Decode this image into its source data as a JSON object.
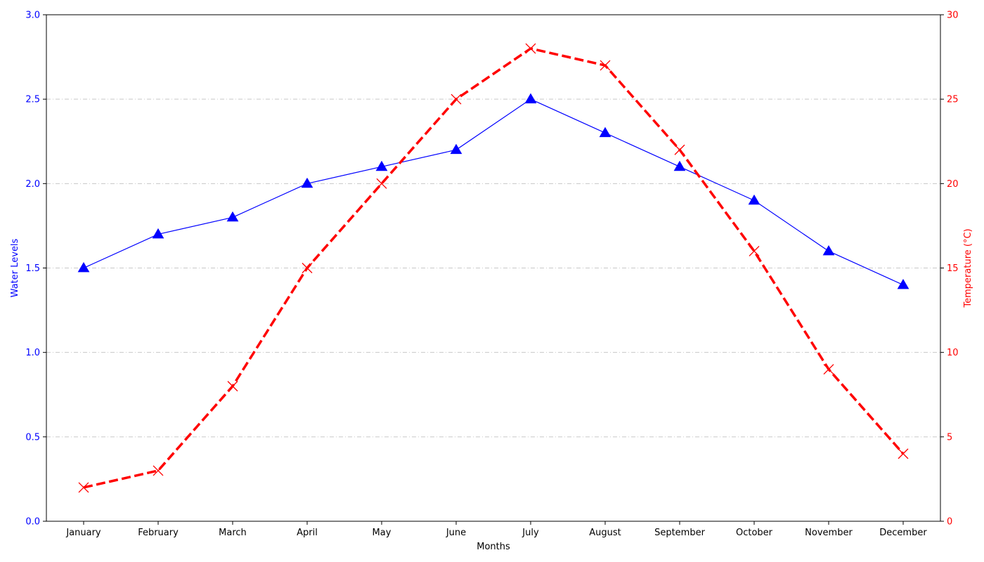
{
  "chart_data": {
    "type": "line",
    "title": "",
    "xlabel": "Months",
    "categories": [
      "January",
      "February",
      "March",
      "April",
      "May",
      "June",
      "July",
      "August",
      "September",
      "October",
      "November",
      "December"
    ],
    "left_axis": {
      "label": "Water Levels",
      "ylim": [
        0,
        3.0
      ],
      "ticks": [
        "0.0",
        "0.5",
        "1.0",
        "1.5",
        "2.0",
        "2.5",
        "3.0"
      ],
      "tick_values": [
        0,
        0.5,
        1.0,
        1.5,
        2.0,
        2.5,
        3.0
      ],
      "color": "#0000ff"
    },
    "right_axis": {
      "label": "Temperature (°C)",
      "ylim": [
        0,
        30
      ],
      "ticks": [
        "0",
        "5",
        "10",
        "15",
        "20",
        "25",
        "30"
      ],
      "tick_values": [
        0,
        5,
        10,
        15,
        20,
        25,
        30
      ],
      "color": "#ff0000"
    },
    "series": [
      {
        "axis": "left",
        "values": [
          1.5,
          1.7,
          1.8,
          2.0,
          2.1,
          2.2,
          2.5,
          2.3,
          2.1,
          1.9,
          1.6,
          1.4
        ],
        "color": "#0000ff",
        "line_style": "solid",
        "marker": "triangle"
      },
      {
        "axis": "right",
        "values": [
          2,
          3,
          8,
          15,
          20,
          25,
          28,
          27,
          22,
          16,
          9,
          4
        ],
        "color": "#ff0000",
        "line_style": "dashed",
        "marker": "x"
      }
    ],
    "grid": "horizontal dash-dot",
    "legend": "none"
  }
}
